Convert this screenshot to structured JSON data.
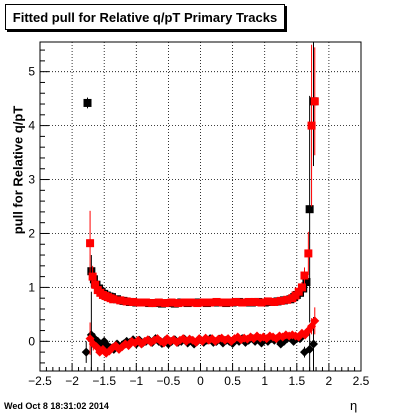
{
  "timestamp": "Wed Oct  8 18:31:02 2014",
  "chart_data": {
    "type": "scatter",
    "title": "Fitted pull for Relative q/pT  Primary Tracks",
    "xlabel": "η",
    "ylabel": "pull for Relative q/pT",
    "xlim": [
      -2.5,
      2.5
    ],
    "ylim": [
      -0.55,
      5.55
    ],
    "x_ticks": [
      "−2.5",
      "−2",
      "−1.5",
      "−1",
      "−0.5",
      "0",
      "0.5",
      "1",
      "1.5",
      "2",
      "2.5"
    ],
    "y_ticks": [
      "0",
      "1",
      "2",
      "3",
      "4",
      "5"
    ],
    "grid": true,
    "legend": "none",
    "series": [
      {
        "marker": "square",
        "color": "#000000",
        "x": [
          -1.76,
          -1.7,
          -1.66,
          -1.62,
          -1.58,
          -1.54,
          -1.5,
          -1.46,
          -1.42,
          -1.38,
          -1.3,
          -1.2,
          -1.1,
          -1.0,
          -0.9,
          -0.8,
          -0.7,
          -0.6,
          -0.5,
          -0.4,
          -0.3,
          -0.2,
          -0.1,
          0.0,
          0.1,
          0.2,
          0.3,
          0.4,
          0.5,
          0.6,
          0.7,
          0.8,
          0.9,
          1.0,
          1.1,
          1.2,
          1.3,
          1.4,
          1.46,
          1.5,
          1.55,
          1.6,
          1.65,
          1.7,
          1.76
        ],
        "y": [
          4.42,
          1.3,
          1.15,
          1.05,
          0.98,
          0.92,
          0.88,
          0.85,
          0.83,
          0.82,
          0.78,
          0.75,
          0.73,
          0.72,
          0.72,
          0.71,
          0.71,
          0.7,
          0.71,
          0.7,
          0.72,
          0.71,
          0.72,
          0.72,
          0.71,
          0.72,
          0.72,
          0.71,
          0.72,
          0.73,
          0.72,
          0.72,
          0.73,
          0.72,
          0.73,
          0.74,
          0.76,
          0.78,
          0.82,
          0.86,
          0.9,
          0.98,
          1.1,
          2.45,
          4.45
        ],
        "yerr": [
          0.1,
          0.3,
          0.12,
          0.1,
          0.08,
          0.06,
          0.05,
          0.04,
          0.04,
          0.03,
          0.03,
          0.03,
          0.03,
          0.03,
          0.03,
          0.03,
          0.03,
          0.03,
          0.03,
          0.03,
          0.03,
          0.03,
          0.03,
          0.03,
          0.03,
          0.03,
          0.03,
          0.03,
          0.03,
          0.03,
          0.03,
          0.03,
          0.03,
          0.03,
          0.03,
          0.03,
          0.03,
          0.04,
          0.05,
          0.06,
          0.08,
          0.1,
          0.15,
          2.1,
          1.2
        ]
      },
      {
        "marker": "square",
        "color": "#ff0000",
        "x": [
          -1.72,
          -1.68,
          -1.64,
          -1.6,
          -1.56,
          -1.52,
          -1.48,
          -1.44,
          -1.4,
          -1.36,
          -1.25,
          -1.15,
          -1.05,
          -0.95,
          -0.85,
          -0.75,
          -0.65,
          -0.55,
          -0.45,
          -0.35,
          -0.25,
          -0.15,
          -0.05,
          0.05,
          0.15,
          0.25,
          0.35,
          0.45,
          0.55,
          0.65,
          0.75,
          0.85,
          0.95,
          1.05,
          1.15,
          1.25,
          1.35,
          1.43,
          1.48,
          1.53,
          1.58,
          1.62,
          1.68,
          1.73,
          1.78
        ],
        "y": [
          1.82,
          1.2,
          1.05,
          0.95,
          0.9,
          0.86,
          0.84,
          0.82,
          0.8,
          0.78,
          0.76,
          0.74,
          0.73,
          0.72,
          0.72,
          0.71,
          0.72,
          0.71,
          0.72,
          0.71,
          0.72,
          0.72,
          0.71,
          0.72,
          0.72,
          0.73,
          0.72,
          0.72,
          0.73,
          0.72,
          0.73,
          0.73,
          0.72,
          0.74,
          0.73,
          0.75,
          0.77,
          0.8,
          0.85,
          0.92,
          1.0,
          1.22,
          1.63,
          4.0,
          4.45
        ],
        "yerr": [
          0.6,
          0.2,
          0.1,
          0.08,
          0.06,
          0.05,
          0.04,
          0.04,
          0.03,
          0.03,
          0.03,
          0.03,
          0.03,
          0.03,
          0.03,
          0.03,
          0.03,
          0.03,
          0.03,
          0.03,
          0.03,
          0.03,
          0.03,
          0.03,
          0.03,
          0.03,
          0.03,
          0.03,
          0.03,
          0.03,
          0.03,
          0.03,
          0.03,
          0.03,
          0.03,
          0.03,
          0.04,
          0.05,
          0.06,
          0.08,
          0.1,
          0.15,
          0.4,
          1.5,
          1.0
        ]
      },
      {
        "marker": "diamond",
        "color": "#000000",
        "x": [
          -1.78,
          -1.7,
          -1.65,
          -1.6,
          -1.55,
          -1.5,
          -1.45,
          -1.4,
          -1.35,
          -1.3,
          -1.25,
          -1.2,
          -1.15,
          -1.1,
          -1.05,
          -1.0,
          -0.95,
          -0.9,
          -0.85,
          -0.8,
          -0.75,
          -0.7,
          -0.65,
          -0.6,
          -0.55,
          -0.5,
          -0.45,
          -0.4,
          -0.35,
          -0.3,
          -0.25,
          -0.2,
          -0.15,
          -0.1,
          -0.05,
          0.0,
          0.05,
          0.1,
          0.15,
          0.2,
          0.25,
          0.3,
          0.35,
          0.4,
          0.45,
          0.5,
          0.55,
          0.6,
          0.65,
          0.7,
          0.75,
          0.8,
          0.85,
          0.9,
          0.95,
          1.0,
          1.05,
          1.1,
          1.15,
          1.2,
          1.25,
          1.3,
          1.35,
          1.4,
          1.45,
          1.5,
          1.55,
          1.62,
          1.7,
          1.76
        ],
        "y": [
          -0.2,
          0.12,
          0.05,
          0.0,
          -0.05,
          0.0,
          -0.08,
          -0.12,
          -0.15,
          -0.05,
          -0.1,
          -0.05,
          0.0,
          -0.02,
          0.03,
          -0.05,
          0.02,
          -0.03,
          0.0,
          0.02,
          -0.02,
          0.05,
          0.0,
          -0.04,
          0.02,
          -0.05,
          0.0,
          0.03,
          -0.02,
          0.0,
          0.04,
          -0.03,
          0.02,
          -0.05,
          0.0,
          0.03,
          -0.02,
          0.02,
          0.05,
          -0.02,
          0.0,
          0.04,
          -0.03,
          0.02,
          0.0,
          -0.04,
          0.03,
          0.0,
          0.05,
          -0.02,
          0.02,
          0.06,
          0.0,
          0.04,
          -0.03,
          0.03,
          0.0,
          0.05,
          0.02,
          0.05,
          -0.05,
          0.0,
          0.05,
          0.08,
          0.0,
          0.05,
          0.05,
          -0.2,
          -0.15,
          -0.05
        ],
        "yerr": [
          0.2,
          0.8,
          0.1,
          0.08,
          0.06,
          0.05,
          0.05,
          0.04,
          0.04,
          0.04,
          0.03,
          0.03,
          0.03,
          0.03,
          0.03,
          0.03,
          0.03,
          0.03,
          0.03,
          0.03,
          0.03,
          0.03,
          0.03,
          0.03,
          0.03,
          0.03,
          0.03,
          0.03,
          0.03,
          0.03,
          0.03,
          0.03,
          0.03,
          0.03,
          0.03,
          0.03,
          0.03,
          0.03,
          0.03,
          0.03,
          0.03,
          0.03,
          0.03,
          0.03,
          0.03,
          0.03,
          0.03,
          0.03,
          0.03,
          0.03,
          0.03,
          0.03,
          0.03,
          0.03,
          0.03,
          0.03,
          0.03,
          0.03,
          0.03,
          0.03,
          0.03,
          0.03,
          0.03,
          0.04,
          0.04,
          0.05,
          0.06,
          0.1,
          0.4,
          0.5
        ]
      },
      {
        "marker": "diamond",
        "color": "#ff0000",
        "x": [
          -1.72,
          -1.67,
          -1.62,
          -1.57,
          -1.52,
          -1.47,
          -1.42,
          -1.37,
          -1.32,
          -1.27,
          -1.22,
          -1.17,
          -1.12,
          -1.07,
          -1.02,
          -0.97,
          -0.92,
          -0.87,
          -0.82,
          -0.77,
          -0.72,
          -0.67,
          -0.62,
          -0.57,
          -0.52,
          -0.47,
          -0.42,
          -0.37,
          -0.32,
          -0.27,
          -0.22,
          -0.17,
          -0.12,
          -0.07,
          -0.02,
          0.03,
          0.08,
          0.13,
          0.18,
          0.23,
          0.28,
          0.33,
          0.38,
          0.43,
          0.48,
          0.53,
          0.58,
          0.63,
          0.68,
          0.73,
          0.78,
          0.83,
          0.88,
          0.93,
          0.98,
          1.03,
          1.08,
          1.13,
          1.18,
          1.23,
          1.28,
          1.33,
          1.38,
          1.43,
          1.48,
          1.53,
          1.58,
          1.63,
          1.68,
          1.73,
          1.78
        ],
        "y": [
          0.05,
          -0.05,
          -0.1,
          -0.2,
          -0.15,
          -0.22,
          -0.18,
          -0.12,
          -0.08,
          -0.15,
          -0.1,
          -0.05,
          -0.08,
          0.0,
          -0.03,
          0.02,
          -0.05,
          0.0,
          0.03,
          -0.02,
          0.02,
          0.05,
          0.0,
          -0.03,
          0.05,
          0.0,
          0.03,
          -0.02,
          0.02,
          0.05,
          0.0,
          0.04,
          0.02,
          -0.02,
          0.05,
          0.0,
          0.06,
          0.02,
          0.05,
          0.0,
          0.04,
          0.06,
          0.02,
          0.05,
          0.0,
          0.05,
          0.08,
          0.03,
          0.06,
          0.04,
          0.08,
          0.05,
          0.1,
          0.06,
          0.08,
          0.05,
          0.1,
          0.08,
          0.05,
          0.1,
          0.08,
          0.12,
          0.1,
          0.12,
          0.1,
          0.08,
          0.15,
          0.12,
          0.2,
          0.28,
          0.38
        ],
        "yerr": [
          0.3,
          0.12,
          0.08,
          0.06,
          0.05,
          0.05,
          0.04,
          0.04,
          0.04,
          0.03,
          0.03,
          0.03,
          0.03,
          0.03,
          0.03,
          0.03,
          0.03,
          0.03,
          0.03,
          0.03,
          0.03,
          0.03,
          0.03,
          0.03,
          0.03,
          0.03,
          0.03,
          0.03,
          0.03,
          0.03,
          0.03,
          0.03,
          0.03,
          0.03,
          0.03,
          0.03,
          0.03,
          0.03,
          0.03,
          0.03,
          0.03,
          0.03,
          0.03,
          0.03,
          0.03,
          0.03,
          0.03,
          0.03,
          0.03,
          0.03,
          0.03,
          0.03,
          0.03,
          0.03,
          0.03,
          0.03,
          0.03,
          0.03,
          0.03,
          0.03,
          0.03,
          0.03,
          0.03,
          0.04,
          0.04,
          0.05,
          0.06,
          0.08,
          0.1,
          0.15,
          0.25
        ]
      }
    ]
  }
}
